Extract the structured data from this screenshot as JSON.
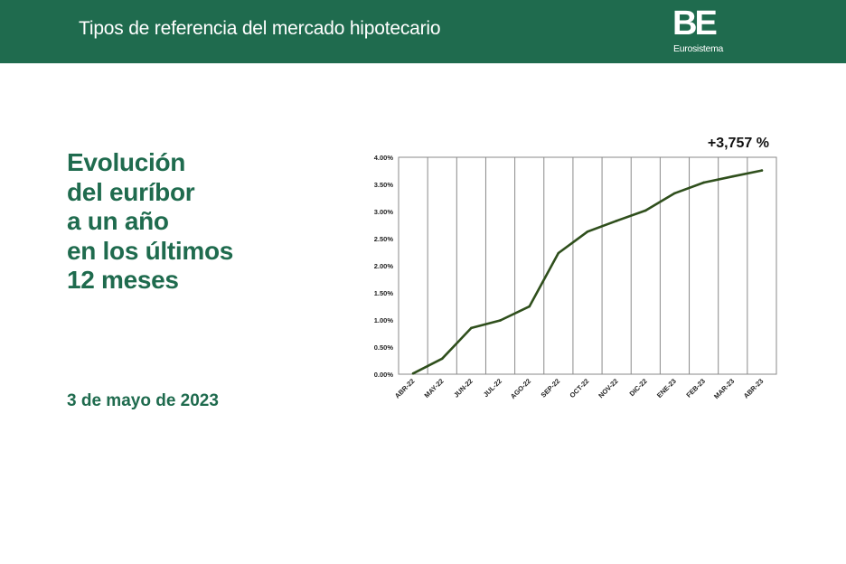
{
  "header": {
    "title": "Tipos de referencia del mercado hipotecario",
    "logo_mark": "BE",
    "logo_text": "Eurosistema"
  },
  "heading": {
    "lines": [
      "Evolución",
      "del euríbor",
      "a un año",
      "en los últimos",
      "12 meses"
    ]
  },
  "date": "3 de mayo de 2023",
  "colors": {
    "brand_green": "#1f6b4e",
    "line": "#2f4f1c",
    "grid": "#8a8a8a"
  },
  "chart_data": {
    "type": "line",
    "categories": [
      "ABR-22",
      "MAY-22",
      "JUN-22",
      "JUL-22",
      "AGO-22",
      "SEP-22",
      "OCT-22",
      "NOV-22",
      "DIC-22",
      "ENE-23",
      "FEB-23",
      "MAR-23",
      "ABR-23"
    ],
    "values": [
      0.013,
      0.287,
      0.852,
      0.992,
      1.249,
      2.233,
      2.629,
      2.828,
      3.018,
      3.337,
      3.534,
      3.647,
      3.757
    ],
    "ytick_labels": [
      "0.00%",
      "0.50%",
      "1.00%",
      "1.50%",
      "2.00%",
      "2.50%",
      "3.00%",
      "3.50%",
      "4.00%"
    ],
    "ylim": [
      0,
      4
    ],
    "annotation": "+3,757 %",
    "grid": "vertical",
    "title": "",
    "xlabel": "",
    "ylabel": ""
  }
}
